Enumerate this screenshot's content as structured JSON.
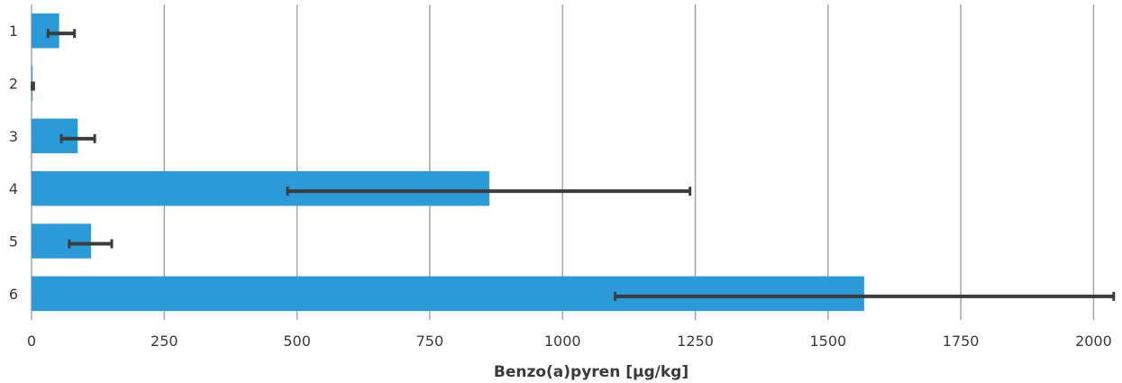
{
  "chart_data": {
    "type": "bar",
    "orientation": "horizontal",
    "categories": [
      "1",
      "2",
      "3",
      "4",
      "5",
      "6"
    ],
    "values": [
      52,
      2,
      87,
      862,
      112,
      1568
    ],
    "error_bars": [
      [
        31,
        81
      ],
      [
        1,
        4
      ],
      [
        56,
        119
      ],
      [
        482,
        1240
      ],
      [
        71,
        151
      ],
      [
        1099,
        2038
      ]
    ],
    "xlabel": "Benzo(a)pyren [µg/kg]",
    "ylabel": "",
    "xlim": [
      0,
      2040
    ],
    "xticks": [
      0,
      250,
      500,
      750,
      1000,
      1250,
      1500,
      1750,
      2000
    ],
    "xtick_labels": [
      "0",
      "250",
      "500",
      "750",
      "1000",
      "1250",
      "1500",
      "1750",
      "2000"
    ],
    "grid": "vertical",
    "legend": "none",
    "colors": {
      "bar": "#2b9ad9",
      "error_bar": "#3c3c3c",
      "grid": "#a6a6a6"
    }
  }
}
